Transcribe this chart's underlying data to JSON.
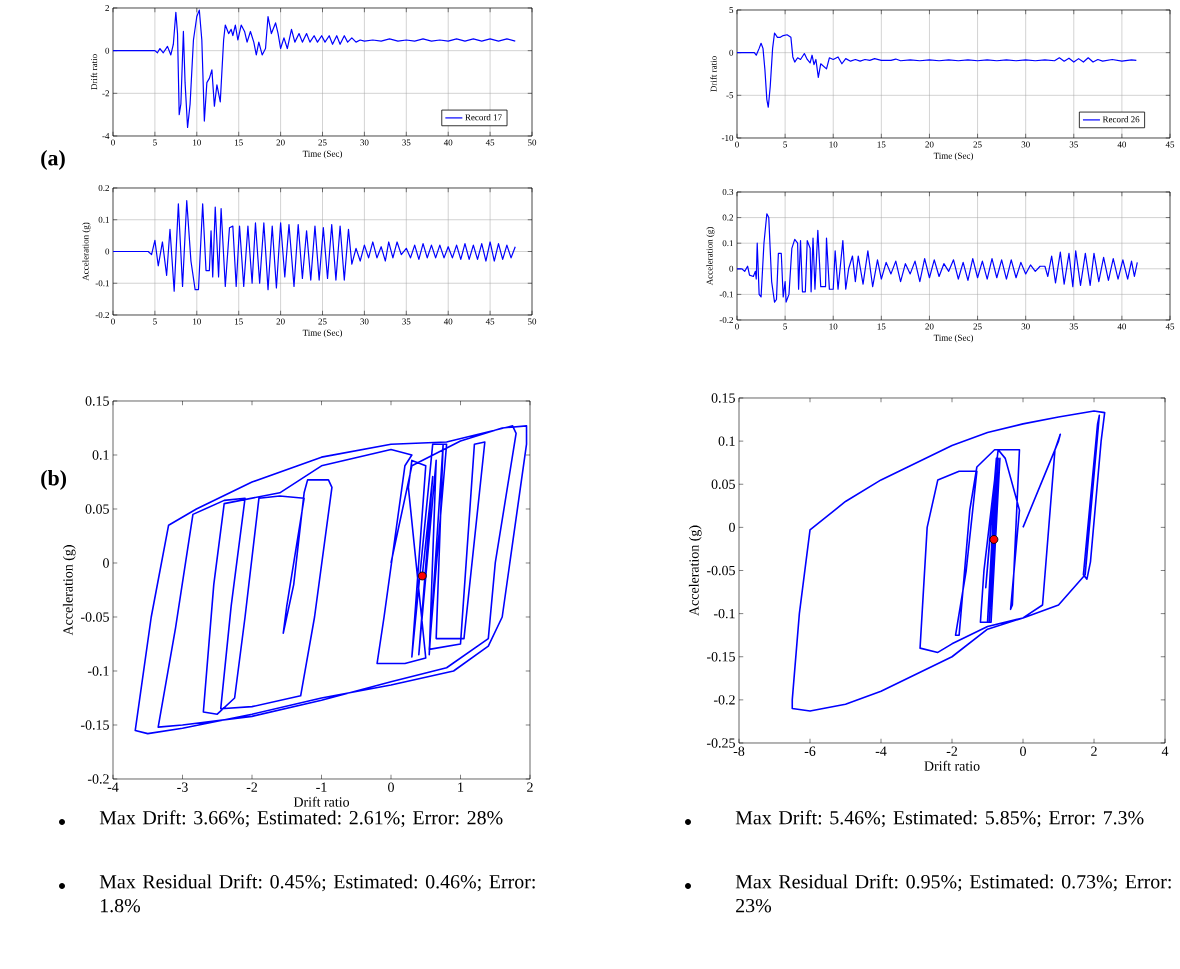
{
  "chart_data": [
    {
      "type": "line",
      "xlabel": "Time (Sec)",
      "ylabel": "Drift ratio",
      "xlim": [
        0,
        50
      ],
      "ylim": [
        -4,
        2
      ],
      "xticks": [
        0,
        5,
        10,
        15,
        20,
        25,
        30,
        35,
        40,
        45,
        50
      ],
      "yticks": [
        -4,
        -2,
        0,
        2
      ],
      "grid": true,
      "legend": "bottom right",
      "annotations": [
        "(a)"
      ],
      "series": [
        {
          "name": "Record 17",
          "color": "#0000ff",
          "x": [
            0,
            5,
            5.3,
            5.6,
            6,
            6.5,
            6.9,
            7.2,
            7.5,
            7.7,
            7.9,
            8.1,
            8.4,
            8.6,
            8.9,
            9.2,
            9.6,
            10.0,
            10.3,
            10.6,
            10.9,
            11.2,
            11.5,
            11.8,
            12.1,
            12.4,
            12.8,
            13.2,
            13.4,
            13.8,
            14.1,
            14.3,
            14.6,
            14.9,
            15.3,
            15.7,
            16.0,
            16.4,
            16.8,
            17.1,
            17.4,
            17.8,
            18.2,
            18.5,
            18.9,
            19.4,
            19.7,
            20.0,
            20.4,
            20.8,
            21.3,
            21.7,
            22.2,
            22.6,
            23.1,
            23.5,
            24.0,
            24.4,
            24.9,
            25.3,
            25.8,
            26.2,
            26.7,
            27.1,
            27.6,
            28.0,
            28.5,
            29.0,
            29.5,
            30,
            31,
            32,
            33,
            34,
            35,
            36,
            37,
            38,
            39,
            40,
            41,
            42,
            43,
            44,
            45,
            46,
            47,
            48
          ],
          "values": [
            0,
            0,
            -0.1,
            0.1,
            -0.1,
            0.2,
            -0.2,
            0.3,
            1.8,
            0.8,
            -3.0,
            -2.5,
            0.9,
            -1.5,
            -3.6,
            -2.5,
            0.5,
            1.6,
            1.9,
            0.5,
            -3.3,
            -1.5,
            -1.3,
            -0.9,
            -2.6,
            -1.6,
            -2.4,
            0.5,
            1.2,
            0.8,
            1.0,
            0.7,
            1.2,
            0.5,
            1.2,
            0.9,
            0.4,
            0.9,
            0.4,
            -0.2,
            0.4,
            -0.2,
            0.1,
            1.6,
            0.8,
            1.3,
            0.8,
            0.1,
            0.6,
            0.1,
            1.0,
            0.4,
            0.8,
            0.4,
            0.8,
            0.4,
            0.7,
            0.4,
            0.7,
            0.4,
            0.7,
            0.3,
            0.7,
            0.3,
            0.7,
            0.4,
            0.6,
            0.4,
            0.5,
            0.45,
            0.5,
            0.45,
            0.55,
            0.45,
            0.5,
            0.45,
            0.55,
            0.45,
            0.5,
            0.45,
            0.55,
            0.45,
            0.55,
            0.45,
            0.55,
            0.45,
            0.55,
            0.45
          ]
        }
      ]
    },
    {
      "type": "line",
      "xlabel": "Time (Sec)",
      "ylabel": "Acceleration (g)",
      "xlim": [
        0,
        50
      ],
      "ylim": [
        -0.2,
        0.2
      ],
      "xticks": [
        0,
        5,
        10,
        15,
        20,
        25,
        30,
        35,
        40,
        45,
        50
      ],
      "yticks": [
        -0.2,
        -0.1,
        0,
        0.1,
        0.2
      ],
      "grid": true,
      "series": [
        {
          "color": "#0000ff",
          "x": [
            0,
            4.2,
            4.6,
            5.0,
            5.4,
            5.9,
            6.4,
            6.8,
            7.3,
            7.8,
            8.3,
            8.8,
            9.3,
            9.8,
            10.2,
            10.7,
            11.1,
            11.5,
            11.7,
            11.9,
            12.2,
            12.6,
            12.9,
            13.4,
            13.9,
            14.3,
            14.7,
            15.1,
            15.6,
            16.1,
            16.6,
            17.0,
            17.5,
            18.0,
            18.5,
            19.0,
            19.5,
            20.0,
            20.5,
            21.0,
            21.6,
            22.1,
            22.6,
            23.1,
            23.6,
            24.1,
            24.6,
            25.1,
            25.6,
            26.1,
            26.6,
            27.1,
            27.6,
            28.1,
            28.5,
            29.0,
            29.5,
            30.0,
            30.5,
            31.0,
            31.5,
            32.0,
            32.5,
            32.9,
            33.4,
            33.9,
            34.4,
            35.0,
            35.5,
            36.0,
            36.5,
            37.0,
            37.5,
            38.0,
            38.5,
            39.0,
            39.5,
            40.0,
            40.5,
            41.0,
            41.5,
            42.0,
            42.5,
            43.0,
            43.5,
            44.0,
            44.5,
            45.0,
            45.5,
            46.0,
            46.5,
            47.0,
            47.5,
            48.0
          ],
          "values": [
            0,
            0,
            -0.01,
            0.035,
            -0.045,
            0.03,
            -0.075,
            0.07,
            -0.125,
            0.15,
            -0.11,
            0.16,
            -0.03,
            -0.12,
            -0.12,
            0.15,
            -0.06,
            -0.06,
            0.065,
            -0.08,
            0.14,
            -0.08,
            0.135,
            -0.11,
            0.075,
            0.08,
            -0.11,
            0.08,
            -0.11,
            0.08,
            -0.1,
            0.09,
            -0.1,
            0.09,
            -0.12,
            0.08,
            -0.115,
            0.09,
            -0.08,
            0.085,
            -0.11,
            0.085,
            -0.085,
            0.065,
            -0.09,
            0.08,
            -0.09,
            0.075,
            -0.085,
            0.085,
            -0.09,
            0.08,
            -0.09,
            0.07,
            -0.04,
            0.01,
            -0.03,
            0.02,
            -0.02,
            0.03,
            -0.02,
            0.015,
            -0.03,
            0.03,
            -0.02,
            0.03,
            -0.01,
            0.01,
            -0.02,
            0.02,
            -0.025,
            0.025,
            -0.02,
            0.02,
            -0.02,
            0.02,
            -0.02,
            0.015,
            -0.02,
            0.02,
            -0.025,
            0.025,
            -0.025,
            0.02,
            -0.025,
            0.025,
            -0.03,
            0.03,
            -0.03,
            0.025,
            -0.025,
            0.02,
            -0.02,
            0.015
          ]
        }
      ]
    },
    {
      "type": "line",
      "xlabel": "Time (Sec)",
      "ylabel": "Drift ratio",
      "xlim": [
        0,
        45
      ],
      "ylim": [
        -10,
        5
      ],
      "xticks": [
        0,
        5,
        10,
        15,
        20,
        25,
        30,
        35,
        40,
        45
      ],
      "yticks": [
        -10,
        -5,
        0,
        5
      ],
      "grid": true,
      "legend": "bottom right",
      "series": [
        {
          "name": "Record 26",
          "color": "#0000ff",
          "x": [
            0,
            1.8,
            2.0,
            2.3,
            2.5,
            2.7,
            2.9,
            3.1,
            3.25,
            3.45,
            3.7,
            3.9,
            4.2,
            4.5,
            4.8,
            5.2,
            5.6,
            5.8,
            6.0,
            6.3,
            6.6,
            7.0,
            7.3,
            7.6,
            7.8,
            8.0,
            8.2,
            8.45,
            8.7,
            9.0,
            9.3,
            9.6,
            10.0,
            10.5,
            10.9,
            11.3,
            11.8,
            12.3,
            12.8,
            13.3,
            13.8,
            14.3,
            15,
            16,
            16.5,
            17,
            18,
            19,
            20,
            21,
            22,
            23,
            24,
            25,
            26,
            27,
            28,
            29,
            30,
            31,
            32,
            33,
            33.5,
            34,
            34.5,
            35,
            35.5,
            36,
            36.5,
            37,
            37.5,
            38,
            39,
            40,
            41,
            41.5
          ],
          "values": [
            0,
            0,
            -0.3,
            0.5,
            1.1,
            0.5,
            -2,
            -5.5,
            -6.4,
            -4,
            0.5,
            2.3,
            1.8,
            1.8,
            2.0,
            2.1,
            1.8,
            -0.5,
            -1.1,
            -0.6,
            -0.8,
            -0.1,
            -0.8,
            -1.2,
            -0.3,
            -1.4,
            -0.8,
            -2.9,
            -1.3,
            -1.6,
            -1.9,
            -0.6,
            -0.8,
            -0.5,
            -1.3,
            -0.7,
            -1.0,
            -0.8,
            -1.0,
            -0.8,
            -0.9,
            -0.7,
            -0.9,
            -0.9,
            -0.75,
            -0.95,
            -0.85,
            -0.95,
            -0.85,
            -0.95,
            -0.85,
            -0.95,
            -0.85,
            -0.95,
            -0.85,
            -0.95,
            -0.85,
            -0.95,
            -0.85,
            -0.95,
            -0.85,
            -0.95,
            -0.6,
            -1.0,
            -0.65,
            -1.1,
            -0.7,
            -1.1,
            -0.6,
            -1.1,
            -0.8,
            -1.0,
            -0.8,
            -1.0,
            -0.85,
            -0.9
          ]
        }
      ]
    },
    {
      "type": "line",
      "xlabel": "Time (Sec)",
      "ylabel": "Acceleration (g)",
      "xlim": [
        0,
        45
      ],
      "ylim": [
        -0.2,
        0.3
      ],
      "xticks": [
        0,
        5,
        10,
        15,
        20,
        25,
        30,
        35,
        40,
        45
      ],
      "yticks": [
        -0.2,
        -0.1,
        0,
        0.1,
        0.2,
        0.3
      ],
      "grid": true,
      "series": [
        {
          "color": "#0000ff",
          "x": [
            0,
            0.5,
            0.8,
            1.1,
            1.3,
            1.7,
            1.9,
            2.0,
            2.1,
            2.3,
            2.5,
            2.8,
            3.1,
            3.3,
            3.6,
            3.9,
            4.1,
            4.3,
            4.6,
            4.8,
            5.0,
            5.1,
            5.4,
            5.7,
            6.0,
            6.3,
            6.4,
            6.6,
            6.8,
            7.1,
            7.3,
            7.6,
            7.7,
            7.9,
            8.1,
            8.4,
            8.7,
            9.2,
            9.3,
            9.6,
            10.0,
            10.2,
            10.5,
            11.0,
            11.3,
            11.6,
            12.0,
            12.3,
            12.6,
            13.1,
            13.6,
            14.1,
            14.6,
            15.0,
            15.5,
            16.0,
            16.5,
            17.0,
            17.5,
            18.0,
            18.5,
            19.0,
            19.5,
            20.0,
            20.5,
            21.0,
            21.5,
            22.0,
            22.5,
            23.0,
            23.5,
            24.0,
            24.5,
            25.0,
            25.5,
            26.0,
            26.5,
            27.0,
            27.5,
            28.0,
            28.5,
            29.0,
            29.5,
            30.0,
            30.5,
            31.0,
            31.5,
            32.0,
            32.3,
            32.7,
            33.1,
            33.6,
            34.0,
            34.5,
            34.9,
            35.2,
            35.7,
            36.2,
            36.7,
            37.1,
            37.6,
            38.1,
            38.6,
            39.1,
            39.6,
            40.1,
            40.6,
            41.0,
            41.3,
            41.6
          ],
          "values": [
            0,
            0,
            -0.01,
            0.01,
            -0.025,
            -0.03,
            -0.01,
            -0.04,
            0.1,
            -0.1,
            -0.11,
            0.1,
            0.215,
            0.2,
            -0.05,
            -0.13,
            -0.12,
            0.06,
            0.06,
            -0.11,
            -0.05,
            -0.13,
            -0.1,
            0.08,
            0.115,
            0.1,
            -0.08,
            0.11,
            -0.09,
            -0.09,
            0.11,
            0.08,
            -0.09,
            0.12,
            -0.08,
            0.15,
            -0.07,
            -0.07,
            0.12,
            -0.08,
            -0.08,
            0.07,
            -0.08,
            0.11,
            -0.08,
            0.0,
            0.05,
            -0.05,
            0.05,
            -0.06,
            0.07,
            -0.07,
            0.035,
            -0.04,
            0.025,
            -0.02,
            0.03,
            -0.05,
            0.02,
            -0.02,
            0.03,
            -0.05,
            0.04,
            -0.035,
            0.035,
            -0.03,
            0.02,
            -0.01,
            0.035,
            -0.04,
            0.025,
            -0.045,
            0.04,
            -0.035,
            0.03,
            -0.04,
            0.04,
            -0.035,
            0.035,
            -0.04,
            0.035,
            -0.035,
            0.025,
            -0.02,
            0.015,
            -0.01,
            0.01,
            0.01,
            -0.03,
            0.05,
            -0.055,
            0.065,
            -0.06,
            0.06,
            -0.07,
            0.07,
            -0.065,
            0.06,
            -0.065,
            0.06,
            -0.05,
            0.045,
            -0.045,
            0.04,
            -0.04,
            0.035,
            -0.04,
            0.03,
            -0.03,
            0.025
          ]
        }
      ]
    },
    {
      "type": "line",
      "xlabel": "Drift ratio",
      "ylabel": "Acceleration (g)",
      "xlim": [
        -4,
        2
      ],
      "ylim": [
        -0.2,
        0.15
      ],
      "xticks": [
        -4,
        -3,
        -2,
        -1,
        0,
        1,
        2
      ],
      "yticks": [
        -0.2,
        -0.15,
        -0.1,
        -0.05,
        0,
        0.05,
        0.1,
        0.15
      ],
      "annotations": [
        "(b)",
        "Max Drift: 3.66%; Estimated: 2.61%; Error: 28%",
        "Max Residual Drift: 0.45%; Estimated: 0.46%; Error: 1.8%"
      ],
      "series": [
        {
          "color": "#0000ff",
          "x": [
            0,
            0.3,
            1.0,
            1.6,
            1.95,
            1.95,
            1.6,
            1.4,
            0.9,
            0,
            -1,
            -2,
            -3,
            -3.5,
            -3.68,
            -3.45,
            -3.2,
            -2.8,
            -2,
            -1,
            0,
            0.8,
            1.75,
            1.8,
            1.5,
            1.4,
            0.8,
            0,
            -1,
            -2,
            -3,
            -3.35,
            -3.1,
            -2.85,
            -2.4,
            -2.1,
            -2.3,
            -2.45,
            -2.0,
            -1.3,
            -1.1,
            -0.85,
            -0.9,
            -1.2,
            -1.25,
            -1.4,
            -1.55,
            -1.5,
            -1.25,
            -1.6,
            -1.9,
            -2.1,
            -2.25,
            -2.5,
            -2.7,
            -2.55,
            -2.4,
            -1.6,
            -1,
            0,
            0.3,
            0.2,
            -0.1,
            -0.2,
            0.2,
            0.5,
            0.25,
            0.3,
            0.5,
            0.3,
            0.6,
            0.8,
            0.55,
            1.0,
            1.2,
            1.35,
            1.05,
            0.65,
            0.75,
            0.55,
            0.65,
            0.4,
            0.6,
            0.45
          ],
          "values": [
            0,
            0.09,
            0.113,
            0.125,
            0.127,
            0.11,
            -0.05,
            -0.077,
            -0.1,
            -0.113,
            -0.125,
            -0.14,
            -0.153,
            -0.158,
            -0.155,
            -0.05,
            0.035,
            0.05,
            0.075,
            0.098,
            0.11,
            0.112,
            0.127,
            0.12,
            0,
            -0.07,
            -0.097,
            -0.11,
            -0.127,
            -0.142,
            -0.15,
            -0.152,
            -0.06,
            0.045,
            0.058,
            0.06,
            -0.04,
            -0.135,
            -0.133,
            -0.123,
            -0.05,
            0.07,
            0.077,
            0.077,
            0.065,
            -0.02,
            -0.065,
            -0.04,
            0.06,
            0.062,
            0.06,
            -0.05,
            -0.125,
            -0.14,
            -0.138,
            -0.02,
            0.055,
            0.065,
            0.09,
            0.105,
            0.1,
            0.09,
            -0.05,
            -0.093,
            -0.093,
            -0.088,
            0.07,
            0.095,
            0.09,
            -0.087,
            0.11,
            0.11,
            -0.08,
            -0.075,
            0.11,
            0.112,
            -0.07,
            -0.07,
            0.11,
            -0.085,
            0.095,
            -0.085,
            0.08,
            -0.012
          ]
        },
        {
          "type": "scatter",
          "color": "#ff0000",
          "marker": "circle",
          "x": [
            0.45
          ],
          "values": [
            -0.012
          ]
        }
      ]
    },
    {
      "type": "line",
      "xlabel": "Drift ratio",
      "ylabel": "Acceleration (g)",
      "xlim": [
        -8,
        4
      ],
      "ylim": [
        -0.25,
        0.15
      ],
      "xticks": [
        -8,
        -6,
        -4,
        -2,
        0,
        2,
        4
      ],
      "yticks": [
        -0.25,
        -0.2,
        -0.15,
        -0.1,
        -0.05,
        0,
        0.05,
        0.1,
        0.15
      ],
      "annotations": [
        "Max Drift: 5.46%; Estimated: 5.85%; Error: 7.3%",
        "Max Residual Drift: 0.95%; Estimated: 0.73%; Error: 23%"
      ],
      "series": [
        {
          "color": "#0000ff",
          "x": [
            0,
            0.6,
            1.0,
            1.05,
            0.9,
            0.55,
            0,
            -1,
            -2,
            -3,
            -4,
            -5,
            -6,
            -6.5,
            -6.5,
            -6.3,
            -6.0,
            -5,
            -4,
            -3,
            -2,
            -1,
            0,
            1,
            2,
            2.3,
            2.2,
            1.9,
            1.8,
            1.7,
            2.1,
            2.15,
            1.75,
            1.0,
            0,
            -1,
            -2,
            -2.4,
            -2.9,
            -2.7,
            -2.4,
            -1.8,
            -1.3,
            -1.6,
            -1.9,
            -1.8,
            -1.5,
            -1.3,
            -0.8,
            -0.1,
            -0.3,
            -0.35,
            -0.1,
            -0.5,
            -0.7,
            -1.1,
            -1.2,
            -0.9,
            -0.65,
            -0.95,
            -0.7,
            -1.0,
            -0.75,
            -1.05,
            -0.8,
            -0.85
          ],
          "values": [
            0,
            0.06,
            0.1,
            0.108,
            0.09,
            -0.09,
            -0.105,
            -0.118,
            -0.15,
            -0.17,
            -0.19,
            -0.205,
            -0.213,
            -0.21,
            -0.2,
            -0.1,
            -0.003,
            0.03,
            0.055,
            0.075,
            0.095,
            0.11,
            0.12,
            0.128,
            0.135,
            0.133,
            0.1,
            -0.04,
            -0.06,
            -0.055,
            0.12,
            0.13,
            -0.055,
            -0.09,
            -0.105,
            -0.115,
            -0.135,
            -0.145,
            -0.14,
            0,
            0.055,
            0.065,
            0.065,
            -0.05,
            -0.125,
            -0.125,
            0.02,
            0.07,
            0.09,
            0.09,
            -0.09,
            -0.095,
            0.02,
            0.08,
            0.09,
            -0.05,
            -0.11,
            -0.11,
            0.08,
            -0.11,
            0.08,
            -0.11,
            0.08,
            -0.07,
            0.05,
            -0.014
          ]
        },
        {
          "type": "scatter",
          "color": "#ff0000",
          "marker": "circle",
          "x": [
            -0.82
          ],
          "values": [
            -0.014
          ]
        }
      ]
    }
  ]
}
